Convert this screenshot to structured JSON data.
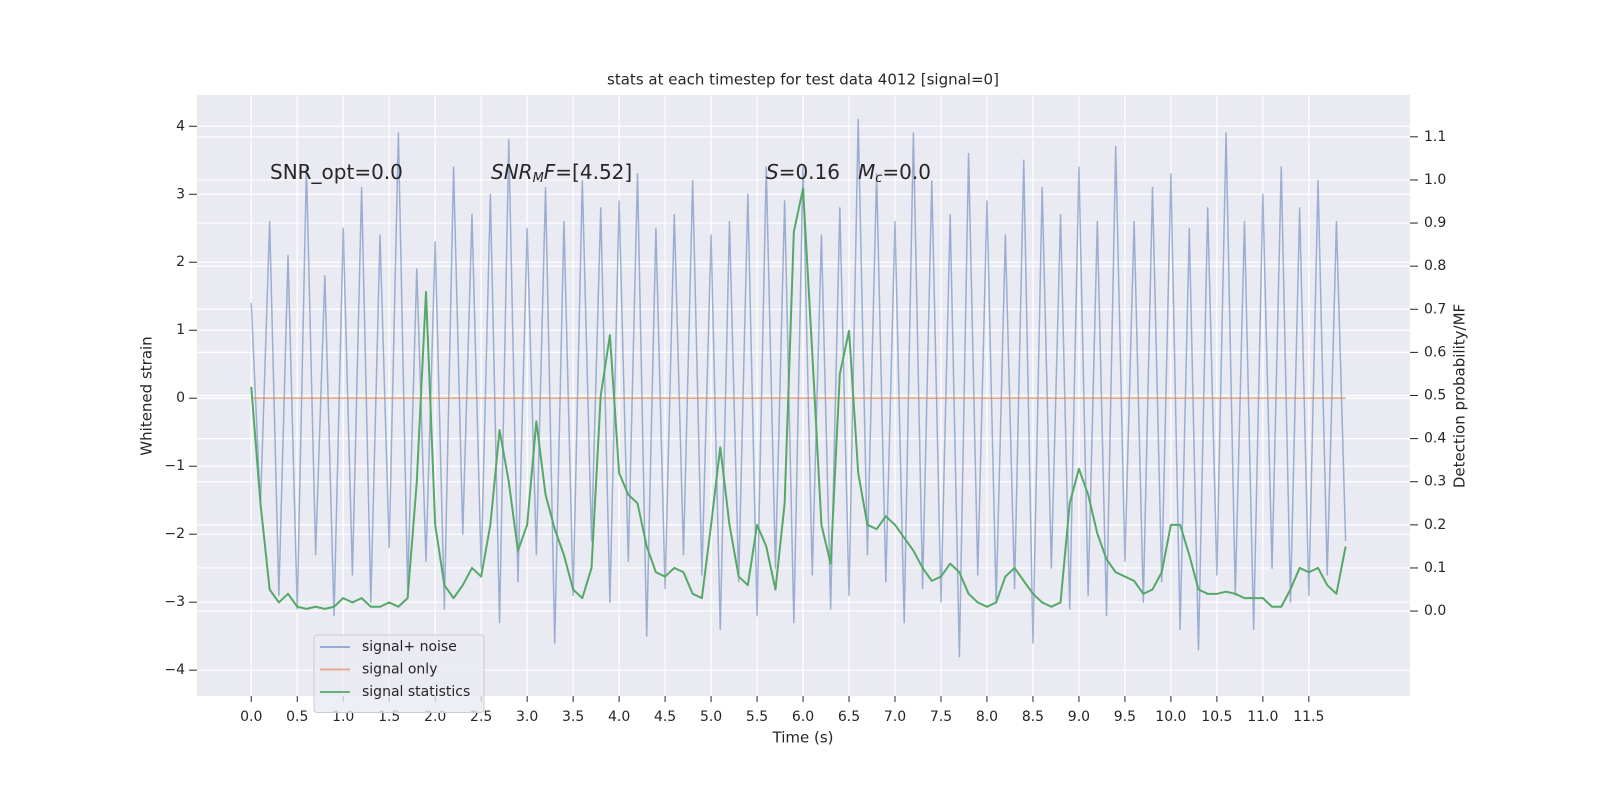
{
  "chart_data": {
    "type": "line",
    "title": "stats at each timestep for test data 4012 [signal=0]",
    "xlabel": "Time (s)",
    "ylabel": "Whitened strain",
    "y2label": "Detection probability/MF",
    "annotations": [
      [
        {
          "text": "SNR_opt=0.0",
          "style": "normal"
        }
      ],
      [
        {
          "text": "SNR",
          "style": "italic"
        },
        {
          "text": "M",
          "style": "sub"
        },
        {
          "text": "F",
          "style": "italic"
        },
        {
          "text": "=[4.52]",
          "style": "normal"
        }
      ],
      [
        {
          "text": "S",
          "style": "italic"
        },
        {
          "text": "=0.16",
          "style": "normal"
        }
      ],
      [
        {
          "text": "M",
          "style": "italic"
        },
        {
          "text": "c",
          "style": "sub"
        },
        {
          "text": "=0.0",
          "style": "normal"
        }
      ]
    ],
    "x": [
      0,
      0.1,
      0.2,
      0.3,
      0.4,
      0.5,
      0.6,
      0.7,
      0.8,
      0.9,
      1.0,
      1.1,
      1.2,
      1.3,
      1.4,
      1.5,
      1.6,
      1.7,
      1.8,
      1.9,
      2.0,
      2.1,
      2.2,
      2.3,
      2.4,
      2.5,
      2.6,
      2.7,
      2.8,
      2.9,
      3.0,
      3.1,
      3.2,
      3.3,
      3.4,
      3.5,
      3.6,
      3.7,
      3.8,
      3.9,
      4.0,
      4.1,
      4.2,
      4.3,
      4.4,
      4.5,
      4.6,
      4.7,
      4.8,
      4.9,
      5.0,
      5.1,
      5.2,
      5.3,
      5.4,
      5.5,
      5.6,
      5.7,
      5.8,
      5.9,
      6.0,
      6.1,
      6.2,
      6.3,
      6.4,
      6.5,
      6.6,
      6.7,
      6.8,
      6.9,
      7.0,
      7.1,
      7.2,
      7.3,
      7.4,
      7.5,
      7.6,
      7.7,
      7.8,
      7.9,
      8.0,
      8.1,
      8.2,
      8.3,
      8.4,
      8.5,
      8.6,
      8.7,
      8.8,
      8.9,
      9.0,
      9.1,
      9.2,
      9.3,
      9.4,
      9.5,
      9.6,
      9.7,
      9.8,
      9.9,
      10.0,
      10.1,
      10.2,
      10.3,
      10.4,
      10.5,
      10.6,
      10.7,
      10.8,
      10.9,
      11.0,
      11.1,
      11.2,
      11.3,
      11.4,
      11.5,
      11.6,
      11.7,
      11.8,
      11.9
    ],
    "series": [
      {
        "name": "signal+ noise",
        "color": "#4c72b0",
        "values": [
          1.4,
          -1.6,
          2.6,
          -2.9,
          2.1,
          -3.1,
          3.4,
          -2.3,
          1.8,
          -3.2,
          2.5,
          -2.6,
          3.1,
          -3.0,
          2.4,
          -2.2,
          3.9,
          -2.8,
          1.9,
          -2.4,
          2.3,
          -3.1,
          3.4,
          -2.0,
          2.7,
          -2.5,
          3.0,
          -3.3,
          3.8,
          -2.7,
          2.5,
          -2.3,
          3.1,
          -3.6,
          2.6,
          -2.9,
          3.2,
          -2.1,
          2.8,
          -3.0,
          2.9,
          -2.4,
          3.3,
          -3.5,
          2.5,
          -2.8,
          2.7,
          -2.3,
          3.2,
          -2.6,
          2.4,
          -3.4,
          2.6,
          -2.7,
          3.0,
          -3.2,
          3.4,
          -2.5,
          2.9,
          -3.3,
          3.4,
          -2.6,
          2.4,
          -3.1,
          2.8,
          -2.9,
          4.1,
          -2.3,
          3.3,
          -2.7,
          2.6,
          -3.3,
          3.9,
          -2.8,
          3.2,
          -3.0,
          2.7,
          -3.8,
          3.6,
          -2.6,
          2.9,
          -3.0,
          2.4,
          -2.8,
          3.5,
          -3.6,
          3.1,
          -2.5,
          2.7,
          -3.1,
          3.4,
          -2.9,
          2.6,
          -3.2,
          3.7,
          -2.4,
          2.6,
          -3.0,
          3.1,
          -2.7,
          3.3,
          -3.4,
          2.5,
          -3.7,
          2.8,
          -2.6,
          3.9,
          -2.9,
          2.6,
          -3.4,
          3.0,
          -2.5,
          3.4,
          -3.0,
          2.8,
          -2.9,
          3.2,
          -2.6,
          2.6,
          -2.1
        ]
      },
      {
        "name": "signal only",
        "color": "#dd8452",
        "values": [
          0,
          0,
          0,
          0,
          0,
          0,
          0,
          0,
          0,
          0,
          0,
          0,
          0,
          0,
          0,
          0,
          0,
          0,
          0,
          0,
          0,
          0,
          0,
          0,
          0,
          0,
          0,
          0,
          0,
          0,
          0,
          0,
          0,
          0,
          0,
          0,
          0,
          0,
          0,
          0,
          0,
          0,
          0,
          0,
          0,
          0,
          0,
          0,
          0,
          0,
          0,
          0,
          0,
          0,
          0,
          0,
          0,
          0,
          0,
          0,
          0,
          0,
          0,
          0,
          0,
          0,
          0,
          0,
          0,
          0,
          0,
          0,
          0,
          0,
          0,
          0,
          0,
          0,
          0,
          0,
          0,
          0,
          0,
          0,
          0,
          0,
          0,
          0,
          0,
          0,
          0,
          0,
          0,
          0,
          0,
          0,
          0,
          0,
          0,
          0,
          0,
          0,
          0,
          0,
          0,
          0,
          0,
          0,
          0,
          0,
          0,
          0,
          0,
          0,
          0,
          0,
          0,
          0,
          0,
          0
        ]
      },
      {
        "name": "signal statistics",
        "color": "#55a868",
        "axis": "y2",
        "values": [
          0.52,
          0.25,
          0.05,
          0.02,
          0.04,
          0.01,
          0.005,
          0.01,
          0.005,
          0.01,
          0.03,
          0.02,
          0.03,
          0.01,
          0.01,
          0.02,
          0.01,
          0.03,
          0.3,
          0.74,
          0.2,
          0.06,
          0.03,
          0.06,
          0.1,
          0.08,
          0.2,
          0.42,
          0.3,
          0.14,
          0.2,
          0.44,
          0.27,
          0.19,
          0.13,
          0.05,
          0.03,
          0.1,
          0.5,
          0.64,
          0.32,
          0.27,
          0.25,
          0.15,
          0.09,
          0.08,
          0.1,
          0.09,
          0.04,
          0.03,
          0.2,
          0.38,
          0.2,
          0.08,
          0.06,
          0.2,
          0.15,
          0.05,
          0.25,
          0.88,
          0.98,
          0.6,
          0.2,
          0.11,
          0.55,
          0.65,
          0.32,
          0.2,
          0.19,
          0.22,
          0.2,
          0.17,
          0.14,
          0.1,
          0.07,
          0.08,
          0.11,
          0.09,
          0.04,
          0.02,
          0.01,
          0.02,
          0.08,
          0.1,
          0.07,
          0.04,
          0.02,
          0.01,
          0.02,
          0.25,
          0.33,
          0.27,
          0.18,
          0.12,
          0.09,
          0.08,
          0.07,
          0.04,
          0.05,
          0.09,
          0.2,
          0.2,
          0.13,
          0.05,
          0.04,
          0.04,
          0.045,
          0.04,
          0.03,
          0.03,
          0.03,
          0.01,
          0.01,
          0.05,
          0.1,
          0.09,
          0.1,
          0.06,
          0.04,
          0.15
        ]
      }
    ],
    "xlim": [
      -0.59,
      12.6
    ],
    "xticks": [
      {
        "value": 0,
        "label": "0.0"
      },
      0.5,
      {
        "value": 1,
        "label": "1.0"
      },
      1.5,
      {
        "value": 2,
        "label": "2.0"
      },
      2.5,
      {
        "value": 3,
        "label": "3.0"
      },
      3.5,
      {
        "value": 4,
        "label": "4.0"
      },
      4.5,
      {
        "value": 5,
        "label": "5.0"
      },
      5.5,
      {
        "value": 6,
        "label": "6.0"
      },
      6.5,
      {
        "value": 7,
        "label": "7.0"
      },
      7.5,
      {
        "value": 8,
        "label": "8.0"
      },
      8.5,
      {
        "value": 9,
        "label": "9.0"
      },
      9.5,
      {
        "value": 10,
        "label": "10.0"
      },
      10.5,
      {
        "value": 11,
        "label": "11.0"
      },
      11.5
    ],
    "ylim": [
      -4.38,
      4.46
    ],
    "yticks": [
      {
        "value": -4,
        "label": "−4"
      },
      {
        "value": -3,
        "label": "−3"
      },
      {
        "value": -2,
        "label": "−2"
      },
      {
        "value": -1,
        "label": "−1"
      },
      0,
      1,
      2,
      3,
      4
    ],
    "y2lim": [
      -0.197,
      1.197
    ],
    "y2ticks": [
      {
        "value": 0,
        "label": "0.0"
      },
      0.1,
      0.2,
      0.3,
      0.4,
      0.5,
      0.6,
      0.7,
      0.8,
      0.9,
      {
        "value": 1,
        "label": "1.0"
      },
      1.1
    ],
    "grid": true,
    "legend": "lower left"
  }
}
